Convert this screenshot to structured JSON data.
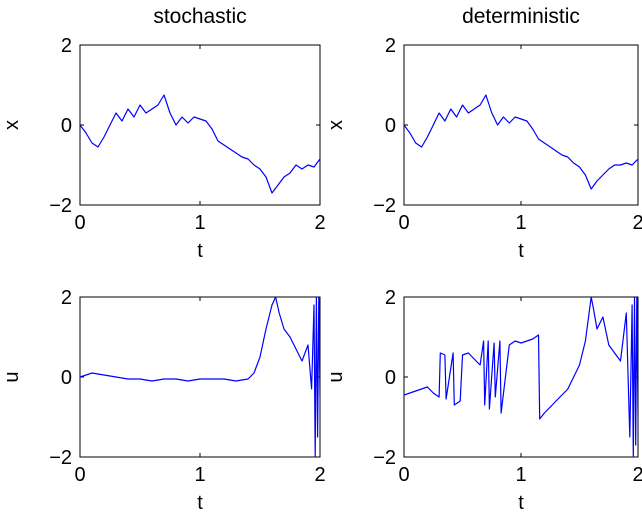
{
  "chart_data": [
    {
      "type": "line",
      "title": "stochastic",
      "xlabel": "t",
      "ylabel": "x",
      "xlim": [
        0,
        2
      ],
      "ylim": [
        -2,
        2
      ],
      "xticks": [
        "0",
        "1",
        "2"
      ],
      "yticks": [
        "-2",
        "0",
        "2"
      ],
      "color": "#0000ff",
      "series": [
        {
          "x": [
            0,
            0.05,
            0.1,
            0.15,
            0.2,
            0.25,
            0.3,
            0.35,
            0.4,
            0.45,
            0.5,
            0.55,
            0.6,
            0.65,
            0.7,
            0.75,
            0.8,
            0.85,
            0.9,
            0.95,
            1.0,
            1.05,
            1.1,
            1.15,
            1.2,
            1.25,
            1.3,
            1.35,
            1.4,
            1.45,
            1.5,
            1.55,
            1.6,
            1.65,
            1.7,
            1.75,
            1.8,
            1.85,
            1.9,
            1.95,
            2.0
          ],
          "y": [
            0.0,
            -0.2,
            -0.45,
            -0.55,
            -0.3,
            0.0,
            0.3,
            0.1,
            0.4,
            0.2,
            0.5,
            0.3,
            0.4,
            0.5,
            0.75,
            0.3,
            0.0,
            0.2,
            0.05,
            0.2,
            0.15,
            0.1,
            -0.1,
            -0.4,
            -0.5,
            -0.6,
            -0.7,
            -0.8,
            -0.85,
            -1.0,
            -1.1,
            -1.3,
            -1.7,
            -1.5,
            -1.3,
            -1.2,
            -1.0,
            -1.1,
            -1.0,
            -1.05,
            -0.85
          ]
        }
      ]
    },
    {
      "type": "line",
      "title": "deterministic",
      "xlabel": "t",
      "ylabel": "x",
      "xlim": [
        0,
        2
      ],
      "ylim": [
        -2,
        2
      ],
      "xticks": [
        "0",
        "1",
        "2"
      ],
      "yticks": [
        "-2",
        "0",
        "2"
      ],
      "color": "#0000ff",
      "series": [
        {
          "x": [
            0,
            0.05,
            0.1,
            0.15,
            0.2,
            0.25,
            0.3,
            0.35,
            0.4,
            0.45,
            0.5,
            0.55,
            0.6,
            0.65,
            0.7,
            0.75,
            0.8,
            0.85,
            0.9,
            0.95,
            1.0,
            1.05,
            1.1,
            1.15,
            1.2,
            1.25,
            1.3,
            1.35,
            1.4,
            1.45,
            1.5,
            1.55,
            1.6,
            1.65,
            1.7,
            1.75,
            1.8,
            1.85,
            1.9,
            1.95,
            2.0
          ],
          "y": [
            0.0,
            -0.2,
            -0.45,
            -0.55,
            -0.3,
            0.0,
            0.3,
            0.1,
            0.4,
            0.2,
            0.5,
            0.3,
            0.4,
            0.5,
            0.75,
            0.3,
            0.0,
            0.2,
            0.05,
            0.2,
            0.15,
            0.1,
            -0.1,
            -0.35,
            -0.45,
            -0.55,
            -0.65,
            -0.75,
            -0.8,
            -0.95,
            -1.05,
            -1.25,
            -1.6,
            -1.4,
            -1.25,
            -1.1,
            -1.0,
            -1.0,
            -0.95,
            -1.0,
            -0.85
          ]
        }
      ]
    },
    {
      "type": "line",
      "title": "",
      "xlabel": "t",
      "ylabel": "u",
      "xlim": [
        0,
        2
      ],
      "ylim": [
        -2,
        2
      ],
      "xticks": [
        "0",
        "1",
        "2"
      ],
      "yticks": [
        "-2",
        "0",
        "2"
      ],
      "color": "#0000ff",
      "series": [
        {
          "x": [
            0,
            0.1,
            0.2,
            0.3,
            0.4,
            0.5,
            0.6,
            0.7,
            0.8,
            0.9,
            1.0,
            1.1,
            1.2,
            1.3,
            1.4,
            1.45,
            1.5,
            1.55,
            1.6,
            1.63,
            1.66,
            1.7,
            1.75,
            1.8,
            1.85,
            1.9,
            1.93,
            1.95,
            1.96,
            1.97,
            1.98,
            1.99,
            2.0
          ],
          "y": [
            0.0,
            0.1,
            0.05,
            0.0,
            -0.05,
            -0.05,
            -0.1,
            -0.05,
            -0.05,
            -0.1,
            -0.05,
            -0.05,
            -0.05,
            -0.1,
            -0.05,
            0.1,
            0.5,
            1.2,
            1.8,
            2.0,
            1.6,
            1.2,
            1.0,
            0.7,
            0.4,
            0.8,
            -0.3,
            1.8,
            -2.0,
            2.0,
            -1.5,
            2.0,
            -0.5
          ]
        }
      ]
    },
    {
      "type": "line",
      "title": "",
      "xlabel": "t",
      "ylabel": "u",
      "xlim": [
        0,
        2
      ],
      "ylim": [
        -2,
        2
      ],
      "xticks": [
        "0",
        "1",
        "2"
      ],
      "yticks": [
        "-2",
        "0",
        "2"
      ],
      "color": "#0000ff",
      "series": [
        {
          "x": [
            0,
            0.1,
            0.2,
            0.25,
            0.3,
            0.31,
            0.35,
            0.36,
            0.42,
            0.43,
            0.48,
            0.5,
            0.55,
            0.6,
            0.65,
            0.68,
            0.69,
            0.72,
            0.73,
            0.77,
            0.78,
            0.82,
            0.83,
            0.9,
            0.95,
            1.0,
            1.05,
            1.1,
            1.15,
            1.16,
            1.2,
            1.3,
            1.4,
            1.5,
            1.55,
            1.6,
            1.62,
            1.65,
            1.7,
            1.75,
            1.8,
            1.85,
            1.9,
            1.93,
            1.95,
            1.96,
            1.97,
            1.98,
            1.99,
            2.0
          ],
          "y": [
            -0.45,
            -0.35,
            -0.25,
            -0.4,
            -0.5,
            0.6,
            0.55,
            -0.55,
            0.6,
            -0.7,
            -0.6,
            0.55,
            0.6,
            0.45,
            0.3,
            0.9,
            -0.7,
            0.9,
            -0.8,
            0.85,
            -0.5,
            0.9,
            -0.9,
            0.8,
            0.9,
            0.85,
            0.9,
            0.95,
            1.05,
            -1.05,
            -0.9,
            -0.6,
            -0.3,
            0.3,
            0.9,
            2.0,
            1.7,
            1.2,
            1.5,
            0.8,
            0.6,
            0.4,
            1.6,
            -1.5,
            1.8,
            -2.0,
            2.0,
            -1.7,
            2.0,
            -1.0
          ]
        }
      ]
    }
  ]
}
